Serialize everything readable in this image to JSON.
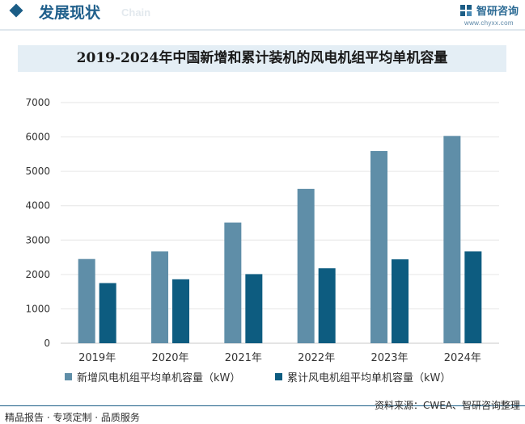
{
  "header": {
    "section_title": "发展现状",
    "section_en": "Chain",
    "brand_name": "智研咨询",
    "brand_url": "www.chyxx.com",
    "brand_color": "#1b5d86"
  },
  "footer": {
    "left": "精品报告 · 专项定制 · 品质服务",
    "right": "资料来源：CWEA、智研咨询整理"
  },
  "chart_data": {
    "type": "bar",
    "title": "2019-2024年中国新增和累计装机的风电机组平均单机容量",
    "xlabel": "",
    "ylabel": "",
    "categories": [
      "2019年",
      "2020年",
      "2021年",
      "2022年",
      "2023年",
      "2024年"
    ],
    "ylim": [
      0,
      7000
    ],
    "yticks": [
      0,
      1000,
      2000,
      3000,
      4000,
      5000,
      6000,
      7000
    ],
    "grid": true,
    "legend_position": "bottom",
    "series": [
      {
        "name": "新增风电机组平均单机容量（kW）",
        "color": "#5f8ea8",
        "values": [
          2450,
          2670,
          3510,
          4490,
          5590,
          6030
        ]
      },
      {
        "name": "累计风电机组平均单机容量（kW）",
        "color": "#0d5c80",
        "values": [
          1750,
          1860,
          2010,
          2180,
          2440,
          2670
        ]
      }
    ]
  }
}
